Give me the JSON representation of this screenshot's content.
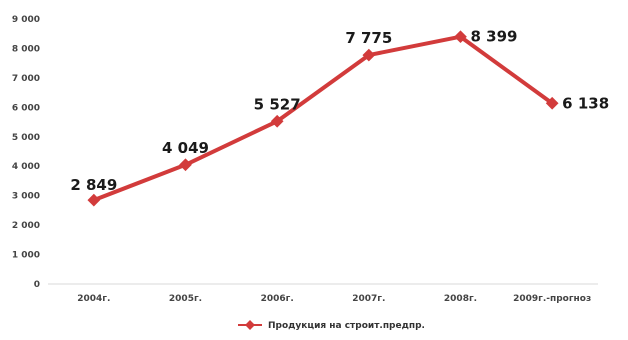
{
  "chart_data": {
    "type": "line",
    "categories": [
      "2004г.",
      "2005г.",
      "2006г.",
      "2007г.",
      "2008г.",
      "2009г.-прогноз"
    ],
    "series": [
      {
        "name": "Продукция на строит.предпр.",
        "values": [
          2849,
          4049,
          5527,
          7775,
          8399,
          6138
        ],
        "labels": [
          "2 849",
          "4 049",
          "5 527",
          "7 775",
          "8 399",
          "6 138"
        ],
        "color": "#d23b3b"
      }
    ],
    "yticks": [
      0,
      1000,
      2000,
      3000,
      4000,
      5000,
      6000,
      7000,
      8000,
      9000
    ],
    "ytick_labels": [
      "0",
      "1 000",
      "2 000",
      "3 000",
      "4 000",
      "5 000",
      "6 000",
      "7 000",
      "8 000",
      "9 000"
    ],
    "ylim": [
      0,
      9000
    ],
    "grid": false,
    "legend_position": "bottom-center"
  }
}
